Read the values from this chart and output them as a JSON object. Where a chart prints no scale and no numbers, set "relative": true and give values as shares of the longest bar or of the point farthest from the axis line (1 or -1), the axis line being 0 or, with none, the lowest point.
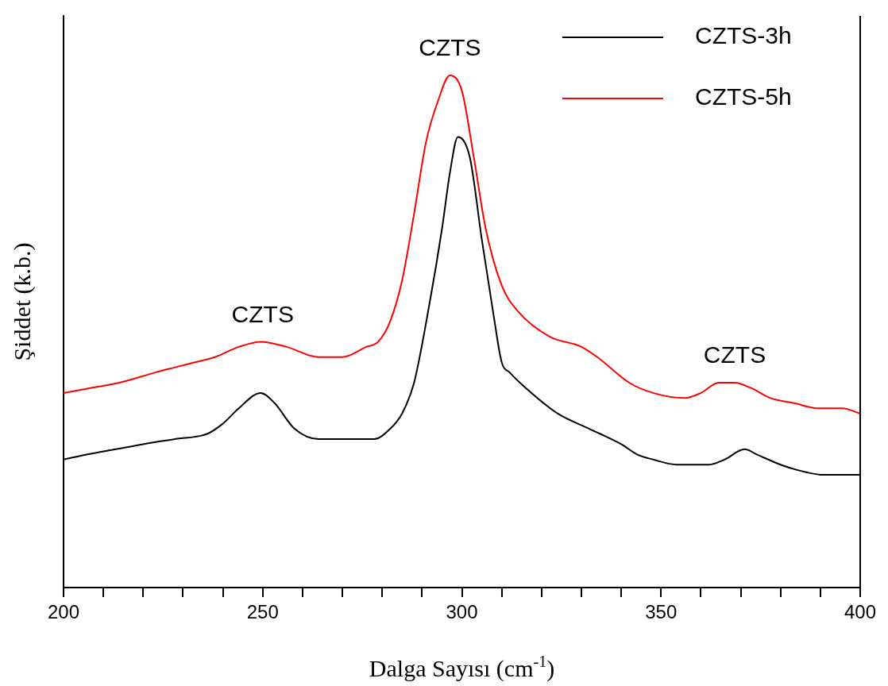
{
  "chart_data": {
    "type": "line",
    "relative": true,
    "xlabel": "Dalga Sayısı (cm$^{-1}$)",
    "ylabel": "Şiddet (k.b.)",
    "xlim": [
      200,
      400
    ],
    "xticks": [
      200,
      {
        "value": 210,
        "label": null
      },
      {
        "value": 220,
        "label": null
      },
      {
        "value": 230,
        "label": null
      },
      {
        "value": 240,
        "label": null
      },
      250,
      {
        "value": 260,
        "label": null
      },
      {
        "value": 270,
        "label": null
      },
      {
        "value": 280,
        "label": null
      },
      {
        "value": 290,
        "label": null
      },
      300,
      {
        "value": 310,
        "label": null
      },
      {
        "value": 320,
        "label": null
      },
      {
        "value": 330,
        "label": null
      },
      {
        "value": 340,
        "label": null
      },
      350,
      {
        "value": 360,
        "label": null
      },
      {
        "value": 370,
        "label": null
      },
      {
        "value": 380,
        "label": null
      },
      {
        "value": 390,
        "label": null
      },
      400
    ],
    "legend": "top right",
    "grid": false,
    "marker": "none",
    "line_style": "solid",
    "series": [
      {
        "name": "CZTS-3h",
        "color": "#000000",
        "x": [
          200,
          206,
          213,
          220,
          228,
          236,
          240,
          244,
          249.5,
          253,
          258,
          264,
          270,
          278,
          282,
          285,
          288,
          292,
          295,
          297,
          299,
          302,
          305,
          308,
          310,
          312,
          316,
          324,
          332,
          340,
          344,
          348,
          354,
          362,
          366,
          371,
          374,
          380,
          384,
          391,
          400
        ],
        "values": [
          0.25,
          0.26,
          0.27,
          0.28,
          0.29,
          0.3,
          0.32,
          0.35,
          0.38,
          0.36,
          0.31,
          0.29,
          0.29,
          0.29,
          0.31,
          0.34,
          0.4,
          0.56,
          0.7,
          0.81,
          0.88,
          0.84,
          0.68,
          0.53,
          0.44,
          0.42,
          0.39,
          0.34,
          0.31,
          0.28,
          0.26,
          0.25,
          0.24,
          0.24,
          0.25,
          0.27,
          0.26,
          0.24,
          0.23,
          0.22,
          0.22
        ]
      },
      {
        "name": "CZTS-5h",
        "color": "#ff0000",
        "x": [
          200,
          207,
          214,
          223,
          228,
          233,
          238,
          244,
          249.5,
          256,
          264,
          270,
          276,
          279,
          282,
          285,
          288,
          291,
          294,
          297,
          300,
          303,
          306,
          310,
          314,
          322,
          330,
          334,
          342,
          348,
          356,
          360,
          364.5,
          368.5,
          372.5,
          377.5,
          383.5,
          389.5,
          395.5,
          400
        ],
        "values": [
          0.38,
          0.39,
          0.4,
          0.42,
          0.43,
          0.44,
          0.45,
          0.47,
          0.48,
          0.47,
          0.45,
          0.45,
          0.47,
          0.48,
          0.52,
          0.6,
          0.73,
          0.87,
          0.95,
          1,
          0.97,
          0.84,
          0.7,
          0.59,
          0.54,
          0.49,
          0.47,
          0.45,
          0.4,
          0.38,
          0.37,
          0.38,
          0.4,
          0.4,
          0.39,
          0.37,
          0.36,
          0.35,
          0.35,
          0.34
        ]
      }
    ],
    "annotations": [
      {
        "text": "CZTS",
        "x": 250,
        "y": 0.48
      },
      {
        "text": "CZTS",
        "x": 297,
        "y": 1
      },
      {
        "text": "CZTS",
        "x": 368.5,
        "y": 0.4
      }
    ]
  }
}
